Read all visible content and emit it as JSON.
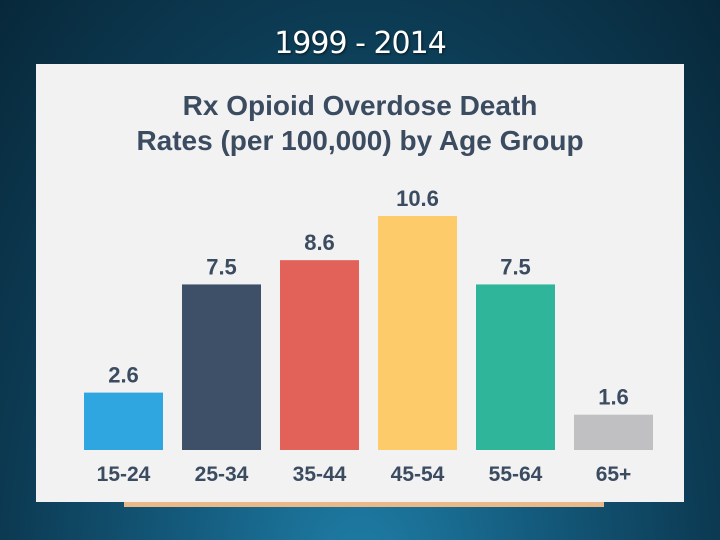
{
  "slide": {
    "title": "1999 - 2014"
  },
  "chart_data": {
    "type": "bar",
    "title": "Rx Opioid Overdose Death Rates (per 100,000) by Age Group",
    "title_lines": [
      "Rx Opioid Overdose Death",
      "Rates (per 100,000) by Age Group"
    ],
    "categories": [
      "15-24",
      "25-34",
      "35-44",
      "45-54",
      "55-64",
      "65+"
    ],
    "values": [
      2.6,
      7.5,
      8.6,
      10.6,
      7.5,
      1.6
    ],
    "value_labels": [
      "2.6",
      "7.5",
      "8.6",
      "10.6",
      "7.5",
      "1.6"
    ],
    "colors": [
      "#2fa6e0",
      "#3d5068",
      "#e2625a",
      "#fecb6a",
      "#2fb59a",
      "#c0c0c2"
    ],
    "xlabel": "",
    "ylabel": "",
    "ylim": [
      0,
      10.6
    ],
    "grid": false,
    "legend": "none"
  }
}
